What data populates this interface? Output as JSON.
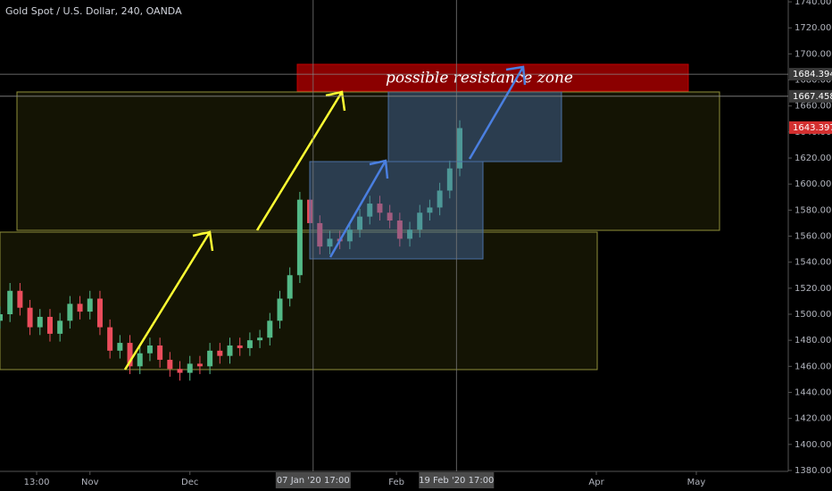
{
  "chart_data": {
    "type": "candlestick",
    "title": "Gold Spot / U.S. Dollar, 240, OANDA",
    "annotation": "possible resistance zone",
    "up_color": "#53b987",
    "down_color": "#eb4d5c",
    "x": [
      -27,
      -24,
      -21,
      -18,
      -15,
      -12,
      -9,
      -6,
      -3,
      0,
      3,
      6,
      9,
      12,
      15,
      18,
      21,
      24,
      27,
      30,
      33,
      36,
      39,
      42,
      45,
      48,
      51,
      54,
      57,
      60,
      63,
      66,
      69,
      72,
      75,
      78,
      81,
      84,
      87,
      90,
      93,
      96,
      99,
      102,
      105,
      108,
      111
    ],
    "open": [
      1495,
      1500,
      1518,
      1505,
      1490,
      1498,
      1485,
      1495,
      1508,
      1502,
      1512,
      1490,
      1472,
      1478,
      1460,
      1470,
      1476,
      1465,
      1458,
      1455,
      1462,
      1460,
      1472,
      1468,
      1476,
      1474,
      1480,
      1482,
      1495,
      1512,
      1530,
      1588,
      1570,
      1552,
      1558,
      1556,
      1565,
      1575,
      1585,
      1578,
      1572,
      1558,
      1565,
      1578,
      1582,
      1595,
      1612
    ],
    "high": [
      1506,
      1524,
      1524,
      1511,
      1504,
      1504,
      1501,
      1514,
      1514,
      1518,
      1518,
      1496,
      1484,
      1484,
      1476,
      1482,
      1482,
      1471,
      1464,
      1468,
      1468,
      1478,
      1478,
      1482,
      1482,
      1486,
      1488,
      1501,
      1518,
      1536,
      1594,
      1594,
      1576,
      1564,
      1564,
      1571,
      1581,
      1591,
      1591,
      1584,
      1578,
      1571,
      1584,
      1588,
      1601,
      1618,
      1649
    ],
    "low": [
      1489,
      1494,
      1499,
      1484,
      1484,
      1479,
      1479,
      1489,
      1496,
      1496,
      1484,
      1466,
      1466,
      1454,
      1454,
      1464,
      1459,
      1452,
      1449,
      1449,
      1454,
      1454,
      1462,
      1462,
      1468,
      1468,
      1474,
      1476,
      1489,
      1506,
      1524,
      1564,
      1546,
      1546,
      1550,
      1550,
      1559,
      1569,
      1572,
      1566,
      1552,
      1552,
      1559,
      1572,
      1576,
      1589,
      1606
    ],
    "close": [
      1500,
      1518,
      1505,
      1490,
      1498,
      1485,
      1495,
      1508,
      1502,
      1512,
      1490,
      1472,
      1478,
      1460,
      1470,
      1476,
      1465,
      1458,
      1455,
      1462,
      1460,
      1472,
      1468,
      1476,
      1474,
      1480,
      1482,
      1495,
      1512,
      1530,
      1588,
      1570,
      1552,
      1558,
      1556,
      1565,
      1575,
      1585,
      1578,
      1572,
      1558,
      1565,
      1578,
      1582,
      1595,
      1612,
      1643
    ],
    "xlim": [
      -27,
      209.6
    ],
    "xticks": [
      {
        "value": -16,
        "label": "13:00"
      },
      {
        "value": 0,
        "label": "Nov"
      },
      {
        "value": 30,
        "label": "Dec"
      },
      {
        "value": 92,
        "label": "Feb"
      },
      {
        "value": 152,
        "label": "Apr"
      },
      {
        "value": 182,
        "label": "May"
      }
    ],
    "ylim": [
      1379.3,
      1741.4
    ],
    "yticks": [
      {
        "value": 1380,
        "label": "1380.000"
      },
      {
        "value": 1400,
        "label": "1400.000"
      },
      {
        "value": 1420,
        "label": "1420.000"
      },
      {
        "value": 1440,
        "label": "1440.000"
      },
      {
        "value": 1460,
        "label": "1460.000"
      },
      {
        "value": 1480,
        "label": "1480.000"
      },
      {
        "value": 1500,
        "label": "1500.000"
      },
      {
        "value": 1520,
        "label": "1520.000"
      },
      {
        "value": 1540,
        "label": "1540.000"
      },
      {
        "value": 1560,
        "label": "1560.000"
      },
      {
        "value": 1580,
        "label": "1580.000"
      },
      {
        "value": 1600,
        "label": "1600.000"
      },
      {
        "value": 1620,
        "label": "1620.000"
      },
      {
        "value": 1640,
        "label": "1640.000"
      },
      {
        "value": 1660,
        "label": "1660.000"
      },
      {
        "value": 1680,
        "label": "1680.000"
      },
      {
        "value": 1700,
        "label": "1700.000"
      },
      {
        "value": 1720,
        "label": "1720.000"
      },
      {
        "value": 1740,
        "label": "1740.000"
      }
    ],
    "price_lines": [
      {
        "value": 1684.394,
        "label": "1684.394"
      },
      {
        "value": 1667.458,
        "label": "1667.458"
      }
    ],
    "last_price": {
      "value": 1643.397,
      "label": "1643.397"
    },
    "crosshairs": [
      {
        "value": 67,
        "label": "07 Jan '20   17:00"
      },
      {
        "value": 110,
        "label": "19 Feb '20   17:00"
      }
    ]
  }
}
